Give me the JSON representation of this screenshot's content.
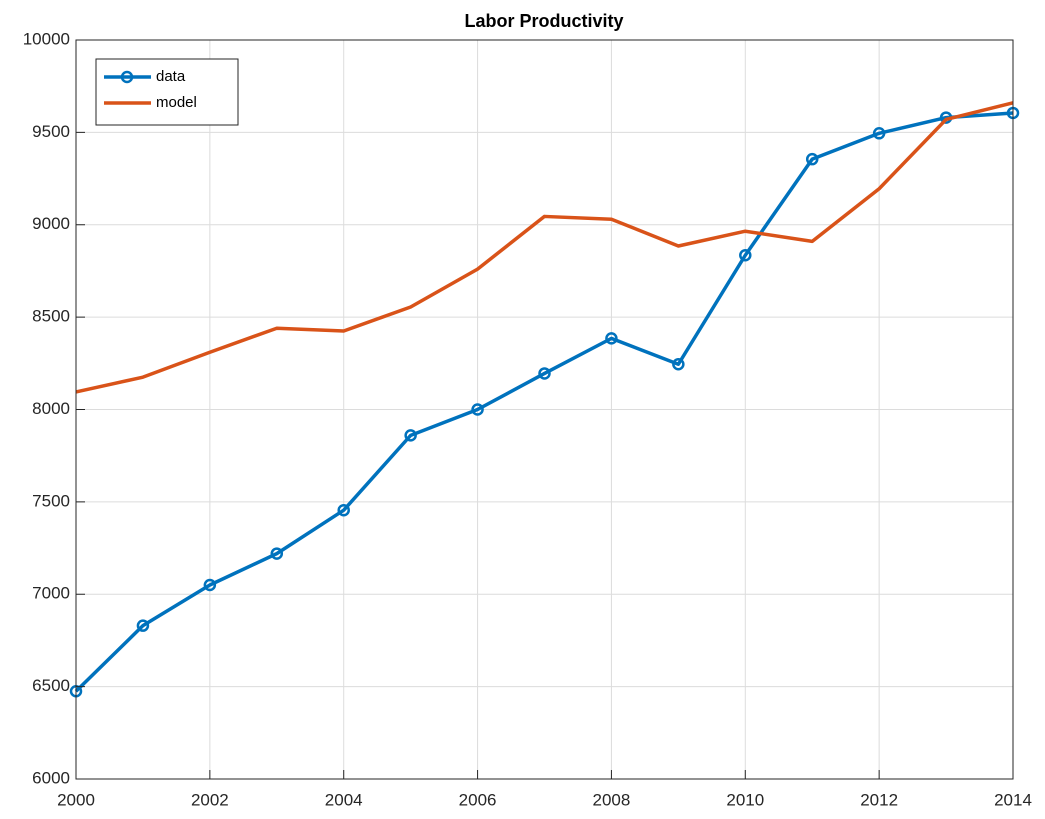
{
  "chart_data": {
    "type": "line",
    "title": "Labor Productivity",
    "x": [
      2000,
      2001,
      2002,
      2003,
      2004,
      2005,
      2006,
      2007,
      2008,
      2009,
      2010,
      2011,
      2012,
      2013,
      2014
    ],
    "series": [
      {
        "name": "data",
        "color": "#0072bd",
        "marker": "o",
        "values": [
          6475,
          6830,
          7050,
          7220,
          7455,
          7860,
          8000,
          8195,
          8385,
          8245,
          8835,
          9355,
          9495,
          9580,
          9605
        ]
      },
      {
        "name": "model",
        "color": "#d95319",
        "values": [
          8095,
          8175,
          8310,
          8440,
          8425,
          8555,
          8760,
          9045,
          9030,
          8885,
          8965,
          8910,
          9195,
          9570,
          9660
        ]
      }
    ],
    "xlim": [
      2000,
      2014
    ],
    "xticks": [
      2000,
      2002,
      2004,
      2006,
      2008,
      2010,
      2012,
      2014
    ],
    "ylim": [
      6000,
      10000
    ],
    "yticks": [
      6000,
      6500,
      7000,
      7500,
      8000,
      8500,
      9000,
      9500,
      10000
    ],
    "grid": true,
    "legend": "upper-left"
  }
}
